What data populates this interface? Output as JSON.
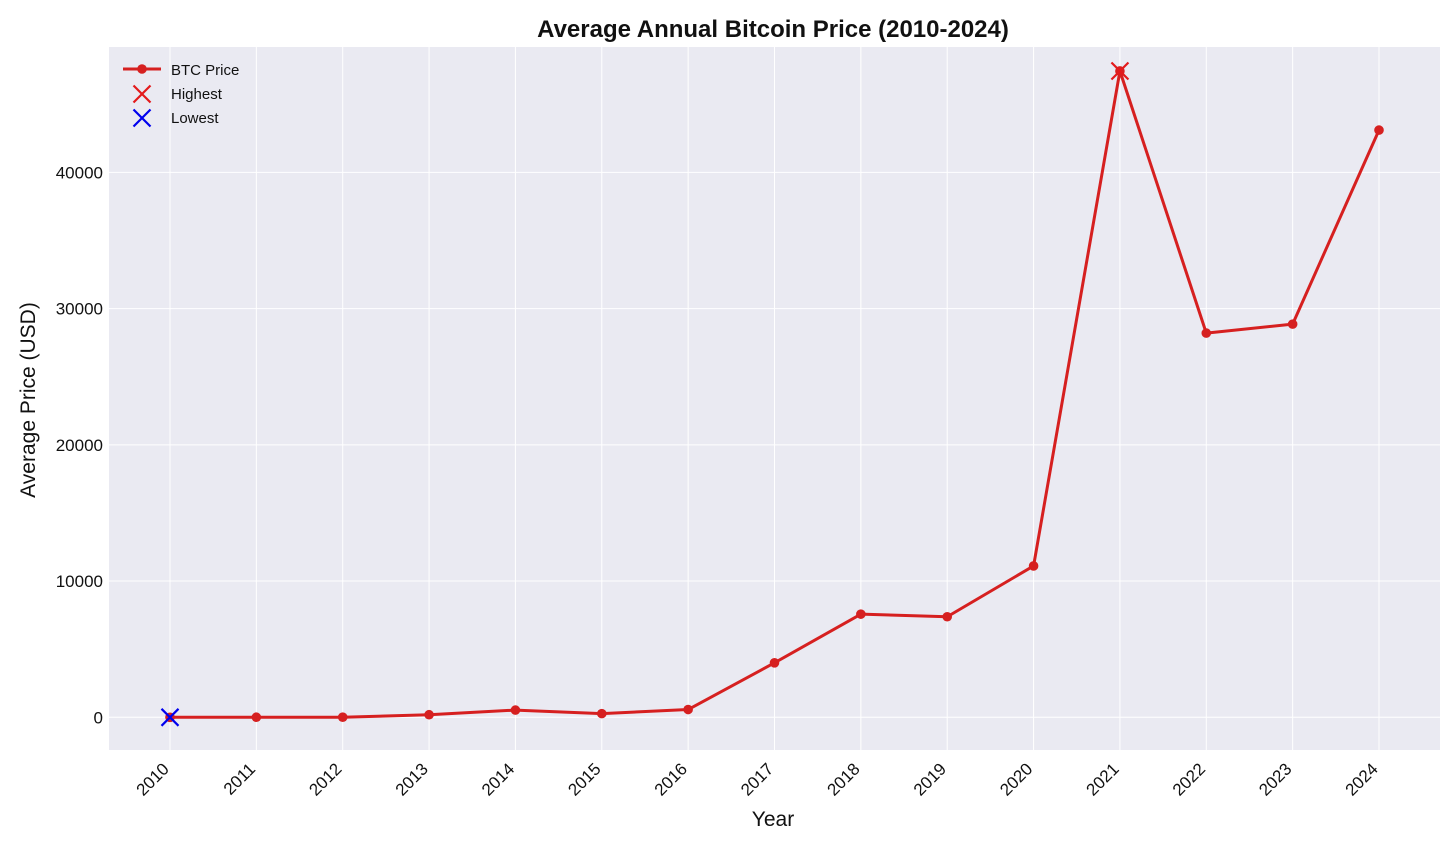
{
  "chart_data": {
    "type": "line",
    "title": "Average Annual Bitcoin Price (2010-2024)",
    "xlabel": "Year",
    "ylabel": "Average Price (USD)",
    "x": [
      "2010",
      "2011",
      "2012",
      "2013",
      "2014",
      "2015",
      "2016",
      "2017",
      "2018",
      "2019",
      "2020",
      "2021",
      "2022",
      "2023",
      "2024"
    ],
    "series": [
      {
        "name": "BTC Price",
        "values": [
          0.1,
          5,
          8,
          190,
          530,
          270,
          570,
          4000,
          7570,
          7380,
          11110,
          47440,
          28200,
          28860,
          43100
        ],
        "color": "#d62020"
      }
    ],
    "highlights": [
      {
        "name": "Highest",
        "x": "2021",
        "value": 47440,
        "color": "#e31a1c"
      },
      {
        "name": "Lowest",
        "x": "2010",
        "value": 0.1,
        "color": "#0000ee"
      }
    ],
    "ylim": [
      -2400,
      49200
    ],
    "yticks": [
      0,
      10000,
      20000,
      30000,
      40000
    ],
    "grid": true,
    "legend": "top-left",
    "background": "#eaeaf2",
    "grid_color": "#ffffff"
  }
}
